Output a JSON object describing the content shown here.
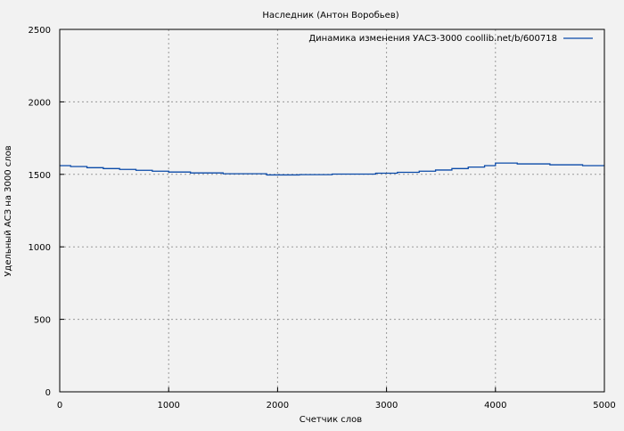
{
  "chart_data": {
    "type": "line",
    "title": "Наследник (Антон Воробьев)",
    "xlabel": "Счетчик слов",
    "ylabel": "Удельный АСЗ на 3000 слов",
    "xlim": [
      0,
      5000
    ],
    "ylim": [
      0,
      2500
    ],
    "xticks": [
      0,
      1000,
      2000,
      3000,
      4000,
      5000
    ],
    "yticks": [
      0,
      500,
      1000,
      1500,
      2000,
      2500
    ],
    "grid": true,
    "legend_position": "top-right",
    "series": [
      {
        "name": "Динамика изменения УАСЗ-3000 coollib.net/b/600718",
        "color": "#0a4aa8",
        "x": [
          0,
          100,
          250,
          400,
          550,
          700,
          850,
          1000,
          1200,
          1500,
          1900,
          2200,
          2500,
          2900,
          3100,
          3300,
          3450,
          3600,
          3750,
          3900,
          4000,
          4200,
          4500,
          4800,
          5000
        ],
        "y": [
          1560,
          1554,
          1546,
          1540,
          1534,
          1528,
          1522,
          1516,
          1510,
          1504,
          1496,
          1498,
          1502,
          1508,
          1514,
          1522,
          1530,
          1540,
          1550,
          1560,
          1578,
          1572,
          1566,
          1560,
          1560
        ]
      }
    ]
  }
}
